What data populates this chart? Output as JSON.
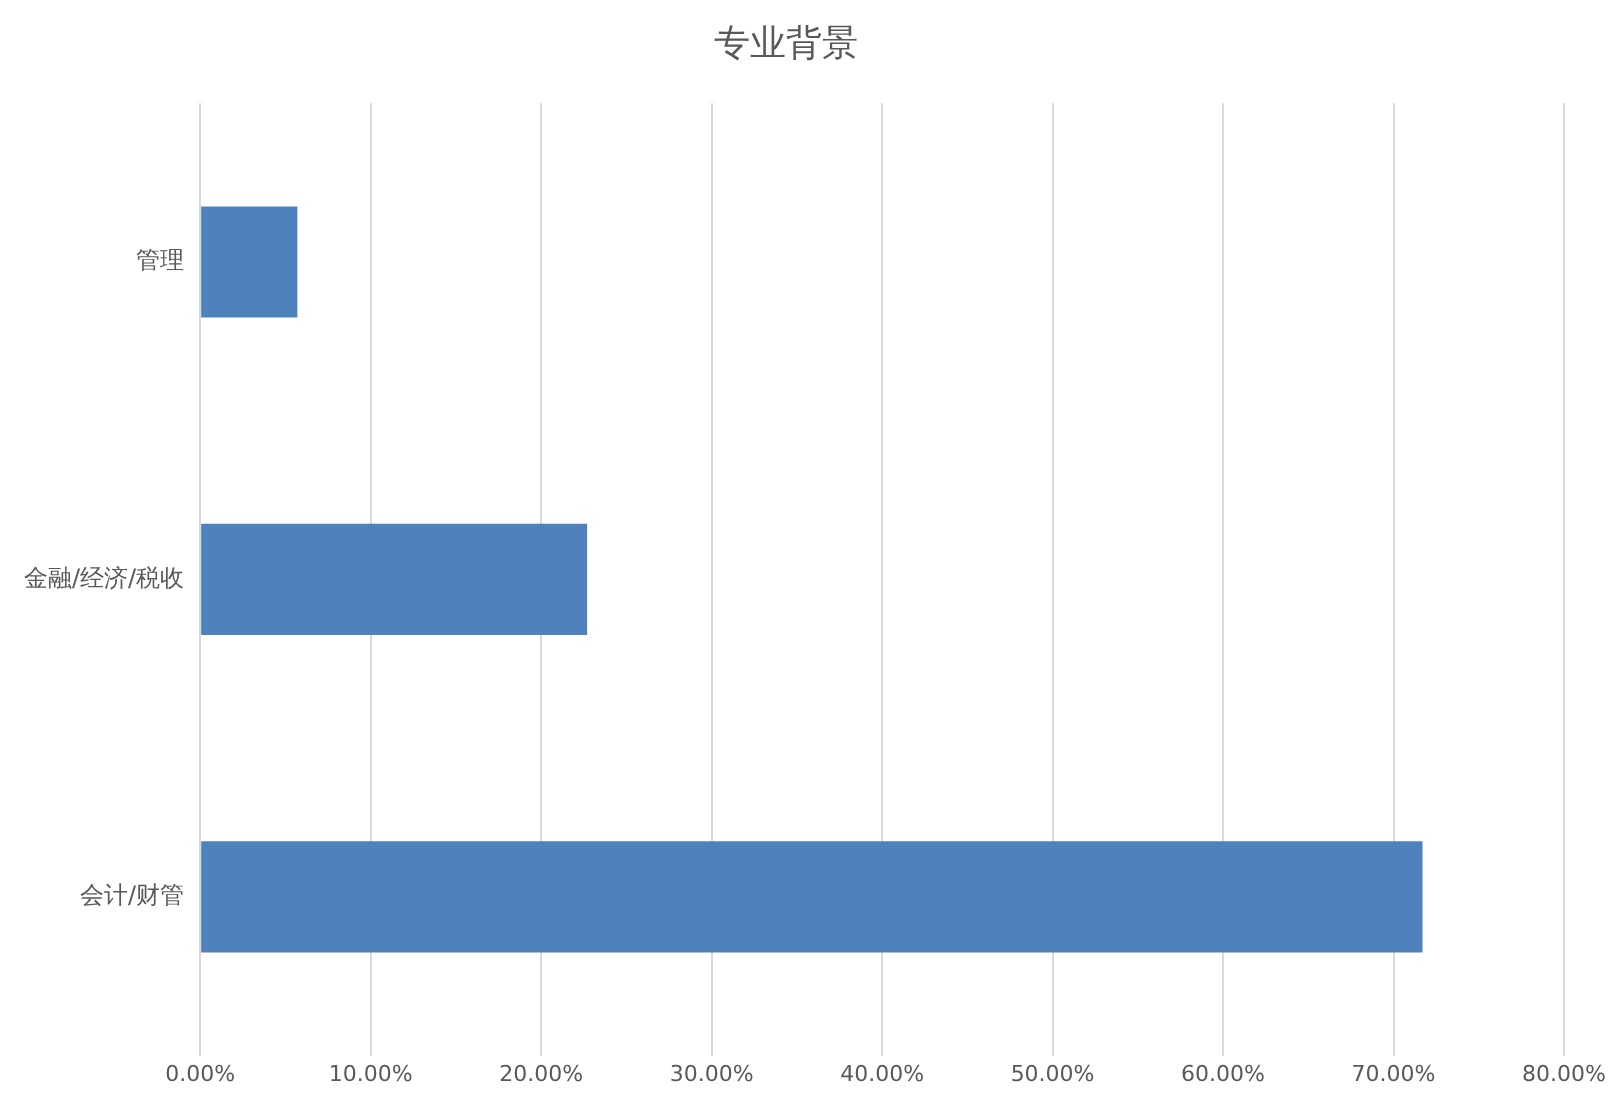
{
  "chart_data": {
    "type": "bar",
    "orientation": "horizontal",
    "title": "专业背景",
    "categories": [
      "管理",
      "金融/经济/税收",
      "会计/财管"
    ],
    "values": [
      5.7,
      22.7,
      71.7
    ],
    "color": "#4f81bd",
    "xlim": [
      0,
      80
    ],
    "xticks": [
      {
        "value": 0,
        "label": "0.00%"
      },
      {
        "value": 10,
        "label": "10.00%"
      },
      {
        "value": 20,
        "label": "20.00%"
      },
      {
        "value": 30,
        "label": "30.00%"
      },
      {
        "value": 40,
        "label": "40.00%"
      },
      {
        "value": 50,
        "label": "50.00%"
      },
      {
        "value": 60,
        "label": "60.00%"
      },
      {
        "value": 70,
        "label": "70.00%"
      },
      {
        "value": 80,
        "label": "80.00%"
      }
    ],
    "grid": "x",
    "legend": false
  }
}
